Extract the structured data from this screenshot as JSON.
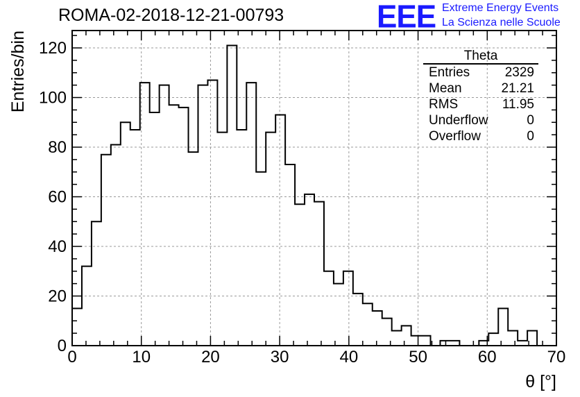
{
  "title": "ROMA-02-2018-12-21-00793",
  "logo": {
    "mark": "EEE",
    "line1": "Extreme Energy Events",
    "line2": "La Scienza nelle Scuole",
    "color": "#1a1aff"
  },
  "stats_box": {
    "title": "Theta",
    "rows": [
      {
        "label": "Entries",
        "value": "2329"
      },
      {
        "label": "Mean",
        "value": "21.21"
      },
      {
        "label": "RMS",
        "value": "11.95"
      },
      {
        "label": "Underflow",
        "value": "0"
      },
      {
        "label": "Overflow",
        "value": "0"
      }
    ]
  },
  "chart_data": {
    "type": "histogram",
    "xlabel": "θ [°]",
    "ylabel": "Entries/bin",
    "xlim": [
      0,
      70
    ],
    "ylim": [
      0,
      127
    ],
    "x_ticks": [
      0,
      10,
      20,
      30,
      40,
      50,
      60,
      70
    ],
    "y_ticks": [
      0,
      20,
      40,
      60,
      80,
      100,
      120
    ],
    "grid": true,
    "bin_width": 1.4,
    "series": [
      {
        "values": [
          15,
          32,
          50,
          77,
          81,
          90,
          87,
          106,
          94,
          105,
          97,
          96,
          78,
          105,
          107,
          86,
          121,
          87,
          106,
          70,
          86,
          93,
          73,
          57,
          61,
          58,
          30,
          25,
          30,
          21,
          17,
          14,
          11,
          6,
          8,
          4,
          4,
          0,
          2,
          2,
          0,
          0,
          2,
          5,
          15,
          6,
          2,
          6,
          0,
          0
        ]
      }
    ]
  }
}
